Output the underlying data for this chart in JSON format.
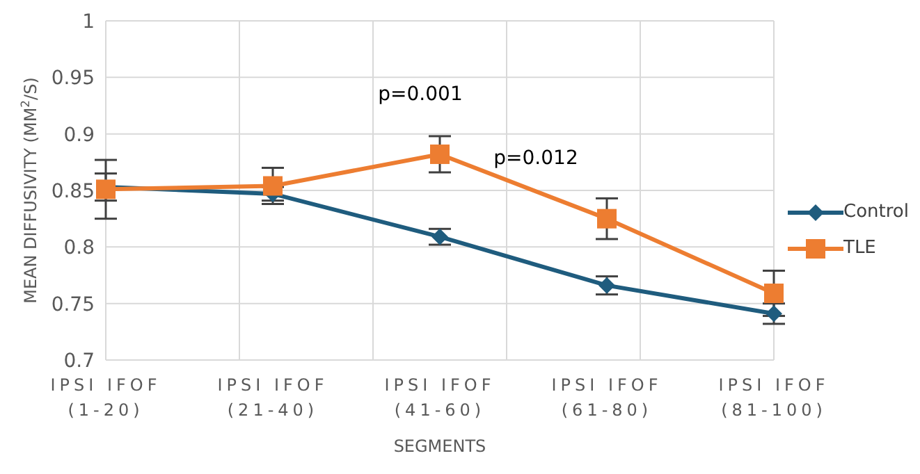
{
  "chart_data": {
    "type": "line",
    "xlabel": "SEGMENTS",
    "ylabel": "MEAN DIFFUSIVITY (MM$^{2}$/S)",
    "categories": [
      "IPSI IFOF (1-20)",
      "IPSI IFOF (21-40)",
      "IPSI IFOF (41-60)",
      "IPSI IFOF (61-80)",
      "IPSI IFOF (81-100)"
    ],
    "series": [
      {
        "name": "Control",
        "color": "#1f5c7e",
        "marker": "diamond",
        "values": [
          0.853,
          0.847,
          0.809,
          0.766,
          0.741
        ],
        "errors": [
          0.012,
          0.006,
          0.007,
          0.008,
          0.009
        ]
      },
      {
        "name": "TLE",
        "color": "#ed7d31",
        "marker": "square",
        "values": [
          0.851,
          0.854,
          0.882,
          0.825,
          0.759
        ],
        "errors": [
          0.026,
          0.016,
          0.016,
          0.018,
          0.02
        ]
      }
    ],
    "ylim": [
      0.7,
      1
    ],
    "yticks": [
      0.7,
      0.75,
      0.8,
      0.85,
      0.9,
      0.95,
      1
    ],
    "grid": true,
    "legend": "right",
    "annotations": [
      "p=0.001",
      "p=0.012"
    ]
  }
}
